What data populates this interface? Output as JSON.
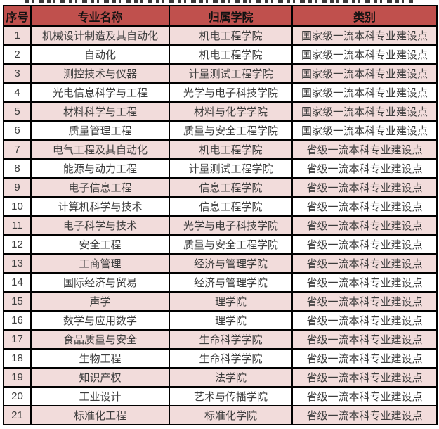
{
  "colors": {
    "header_bg": "#c0504d",
    "header_text": "#111111",
    "row_pink": "#f2dcdb",
    "row_white": "#ffffff",
    "grid_border": "#000000",
    "cell_text": "#3d3d3d",
    "page_bg": "#ffffff"
  },
  "table": {
    "headers": [
      "序号",
      "专业名称",
      "归属学院",
      "类别"
    ],
    "rows": [
      [
        "1",
        "机械设计制造及其自动化",
        "机电工程学院",
        "国家级一流本科专业建设点"
      ],
      [
        "2",
        "自动化",
        "机电工程学院",
        "国家级一流本科专业建设点"
      ],
      [
        "3",
        "测控技术与仪器",
        "计量测试工程学院",
        "国家级一流本科专业建设点"
      ],
      [
        "4",
        "光电信息科学与工程",
        "光学与电子科技学院",
        "国家级一流本科专业建设点"
      ],
      [
        "5",
        "材料科学与工程",
        "材料与化学学院",
        "国家级一流本科专业建设点"
      ],
      [
        "6",
        "质量管理工程",
        "质量与安全工程学院",
        "国家级一流本科专业建设点"
      ],
      [
        "7",
        "电气工程及其自动化",
        "机电工程学院",
        "省级一流本科专业建设点"
      ],
      [
        "8",
        "能源与动力工程",
        "计量测试工程学院",
        "省级一流本科专业建设点"
      ],
      [
        "9",
        "电子信息工程",
        "信息工程学院",
        "省级一流本科专业建设点"
      ],
      [
        "10",
        "计算机科学与技术",
        "信息工程学院",
        "省级一流本科专业建设点"
      ],
      [
        "11",
        "电子科学与技术",
        "光学与电子科技学院",
        "省级一流本科专业建设点"
      ],
      [
        "12",
        "安全工程",
        "质量与安全工程学院",
        "省级一流本科专业建设点"
      ],
      [
        "13",
        "工商管理",
        "经济与管理学院",
        "省级一流本科专业建设点"
      ],
      [
        "14",
        "国际经济与贸易",
        "经济与管理学院",
        "省级一流本科专业建设点"
      ],
      [
        "15",
        "声学",
        "理学院",
        "省级一流本科专业建设点"
      ],
      [
        "16",
        "数学与应用数学",
        "理学院",
        "省级一流本科专业建设点"
      ],
      [
        "17",
        "食品质量与安全",
        "生命科学学院",
        "省级一流本科专业建设点"
      ],
      [
        "18",
        "生物工程",
        "生命科学学院",
        "省级一流本科专业建设点"
      ],
      [
        "19",
        "知识产权",
        "法学院",
        "省级一流本科专业建设点"
      ],
      [
        "20",
        "工业设计",
        "艺术与传播学院",
        "省级一流本科专业建设点"
      ],
      [
        "21",
        "标准化工程",
        "标准化学院",
        "省级一流本科专业建设点"
      ]
    ]
  }
}
